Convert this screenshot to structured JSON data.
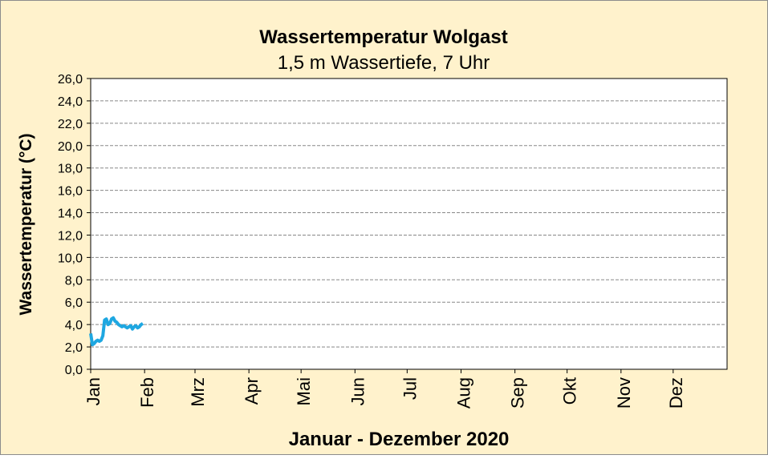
{
  "chart_data": {
    "type": "line",
    "title": "Wassertemperatur Wolgast",
    "subtitle": "1,5 m Wassertiefe, 7 Uhr",
    "ylabel": "Wassertemperatur (°C)",
    "xlabel": "Januar - Dezember 2020",
    "xlim": [
      1,
      367
    ],
    "xticks": [
      {
        "value": 1,
        "label": "Jan"
      },
      {
        "value": 32,
        "label": "Feb"
      },
      {
        "value": 61,
        "label": "Mrz"
      },
      {
        "value": 92,
        "label": "Apr"
      },
      {
        "value": 122,
        "label": "Mai"
      },
      {
        "value": 153,
        "label": "Jun"
      },
      {
        "value": 183,
        "label": "Jul"
      },
      {
        "value": 214,
        "label": "Aug"
      },
      {
        "value": 245,
        "label": "Sep"
      },
      {
        "value": 275,
        "label": "Okt"
      },
      {
        "value": 306,
        "label": "Nov"
      },
      {
        "value": 336,
        "label": "Dez"
      }
    ],
    "ylim": [
      0,
      26
    ],
    "yticks": [
      {
        "value": 0,
        "label": "0,0"
      },
      {
        "value": 2,
        "label": "2,0"
      },
      {
        "value": 4,
        "label": "4,0"
      },
      {
        "value": 6,
        "label": "6,0"
      },
      {
        "value": 8,
        "label": "8,0"
      },
      {
        "value": 10,
        "label": "10,0"
      },
      {
        "value": 12,
        "label": "12,0"
      },
      {
        "value": 14,
        "label": "14,0"
      },
      {
        "value": 16,
        "label": "16,0"
      },
      {
        "value": 18,
        "label": "18,0"
      },
      {
        "value": 20,
        "label": "20,0"
      },
      {
        "value": 22,
        "label": "22,0"
      },
      {
        "value": 24,
        "label": "24,0"
      },
      {
        "value": 26,
        "label": "26,0"
      }
    ],
    "grid": true,
    "color": "#1ea7e1",
    "x": [
      1,
      2,
      3,
      4,
      5,
      6,
      7,
      8,
      9,
      10,
      11,
      12,
      13,
      14,
      15,
      16,
      17,
      18,
      19,
      20,
      21,
      22,
      23,
      24,
      25,
      26,
      27,
      28,
      29,
      30,
      31
    ],
    "values": [
      3.2,
      2.2,
      2.3,
      2.5,
      2.6,
      2.5,
      2.6,
      3.0,
      4.4,
      4.5,
      4.0,
      4.1,
      4.5,
      4.6,
      4.3,
      4.2,
      4.0,
      3.9,
      3.8,
      3.9,
      3.8,
      3.7,
      3.8,
      3.9,
      3.6,
      3.8,
      3.9,
      3.7,
      3.8,
      4.0,
      4.1
    ]
  }
}
